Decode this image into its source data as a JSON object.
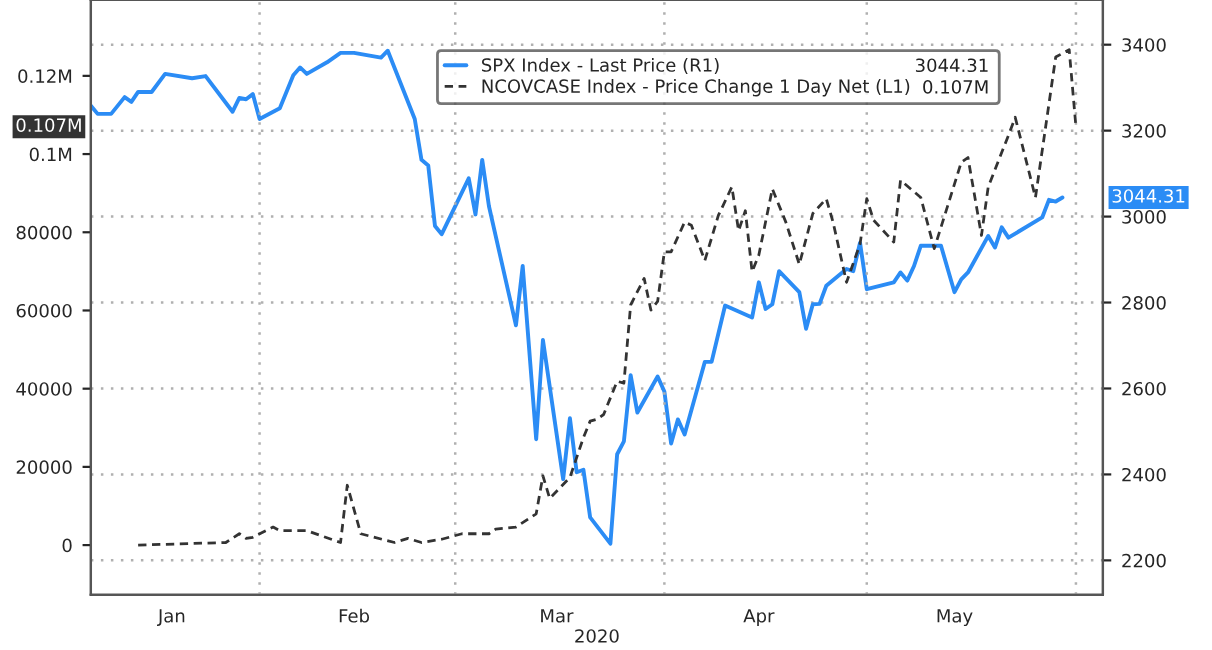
{
  "chart_data": {
    "type": "line",
    "xlabel": "2020",
    "xlim": [
      "2020-01-07",
      "2020-06-05"
    ],
    "xticks": [
      {
        "value": "2020-01-19",
        "label": "Jan"
      },
      {
        "value": "2020-02-01",
        "label": null
      },
      {
        "value": "2020-02-15",
        "label": "Feb"
      },
      {
        "value": "2020-03-01",
        "label": null
      },
      {
        "value": "2020-03-16",
        "label": "Mar"
      },
      {
        "value": "2020-04-01",
        "label": null
      },
      {
        "value": "2020-04-15",
        "label": "Apr"
      },
      {
        "value": "2020-05-01",
        "label": null
      },
      {
        "value": "2020-05-14",
        "label": "May"
      },
      {
        "value": "2020-06-01",
        "label": null
      }
    ],
    "ylim": [
      -12700,
      139400
    ],
    "yticks": [
      0,
      20000,
      40000,
      60000,
      80000,
      {
        "value": 100000,
        "label": "0.1M"
      },
      {
        "value": 120000,
        "label": "0.12M"
      }
    ],
    "y2lim": [
      2120,
      3504
    ],
    "y2ticks": [
      2200,
      2400,
      2600,
      2800,
      3000,
      3200,
      3400
    ],
    "grid": true,
    "legend": "top",
    "marker": "none",
    "series": [
      {
        "name": "SPX Index - Last Price (R1)",
        "color": "#2b8cf5",
        "axis": "y2",
        "line_style": "solid",
        "x": [
          "2020-01-07",
          "2020-01-08",
          "2020-01-10",
          "2020-01-12",
          "2020-01-13",
          "2020-01-14",
          "2020-01-16",
          "2020-01-18",
          "2020-01-22",
          "2020-01-24",
          "2020-01-28",
          "2020-01-29",
          "2020-01-30",
          "2020-01-31",
          "2020-02-01",
          "2020-02-04",
          "2020-02-06",
          "2020-02-07",
          "2020-02-08",
          "2020-02-11",
          "2020-02-13",
          "2020-02-15",
          "2020-02-19",
          "2020-02-20",
          "2020-02-24",
          "2020-02-25",
          "2020-02-26",
          "2020-02-27",
          "2020-02-28",
          "2020-03-03",
          "2020-03-04",
          "2020-03-05",
          "2020-03-06",
          "2020-03-10",
          "2020-03-11",
          "2020-03-13",
          "2020-03-14",
          "2020-03-17",
          "2020-03-18",
          "2020-03-19",
          "2020-03-20",
          "2020-03-21",
          "2020-03-24",
          "2020-03-25",
          "2020-03-26",
          "2020-03-27",
          "2020-03-28",
          "2020-03-31",
          "2020-04-01",
          "2020-04-02",
          "2020-04-03",
          "2020-04-04",
          "2020-04-07",
          "2020-04-08",
          "2020-04-10",
          "2020-04-14",
          "2020-04-15",
          "2020-04-16",
          "2020-04-17",
          "2020-04-18",
          "2020-04-21",
          "2020-04-22",
          "2020-04-23",
          "2020-04-24",
          "2020-04-25",
          "2020-04-28",
          "2020-04-29",
          "2020-04-30",
          "2020-05-01",
          "2020-05-05",
          "2020-05-06",
          "2020-05-07",
          "2020-05-08",
          "2020-05-09",
          "2020-05-12",
          "2020-05-14",
          "2020-05-15",
          "2020-05-16",
          "2020-05-19",
          "2020-05-20",
          "2020-05-21",
          "2020-05-22",
          "2020-05-27",
          "2020-05-28",
          "2020-05-29",
          "2020-05-30"
        ],
        "values": [
          3258,
          3239,
          3239,
          3278,
          3267,
          3290,
          3290,
          3332,
          3322,
          3327,
          3244,
          3276,
          3273,
          3285,
          3227,
          3252,
          3329,
          3347,
          3332,
          3359,
          3381,
          3381,
          3370,
          3386,
          3227,
          3132,
          3119,
          2978,
          2959,
          3089,
          3005,
          3132,
          3024,
          2747,
          2885,
          2482,
          2713,
          2389,
          2531,
          2405,
          2411,
          2300,
          2239,
          2447,
          2477,
          2631,
          2544,
          2628,
          2593,
          2472,
          2528,
          2493,
          2662,
          2662,
          2793,
          2765,
          2847,
          2785,
          2796,
          2873,
          2824,
          2739,
          2796,
          2797,
          2839,
          2878,
          2873,
          2939,
          2831,
          2847,
          2870,
          2851,
          2885,
          2932,
          2932,
          2824,
          2854,
          2870,
          2955,
          2928,
          2975,
          2951,
          2998,
          3039,
          3035,
          3044.31
        ]
      },
      {
        "name": "NCOVCASE Index - Price Change 1 Day Net (L1)",
        "color": "#333333",
        "axis": "y",
        "line_style": "dashed",
        "x": [
          "2020-01-14",
          "2020-01-27",
          "2020-01-29",
          "2020-01-30",
          "2020-01-31",
          "2020-02-03",
          "2020-02-04",
          "2020-02-08",
          "2020-02-13",
          "2020-02-14",
          "2020-02-16",
          "2020-02-21",
          "2020-02-23",
          "2020-02-25",
          "2020-02-28",
          "2020-03-02",
          "2020-03-06",
          "2020-03-07",
          "2020-03-10",
          "2020-03-13",
          "2020-03-14",
          "2020-03-15",
          "2020-03-18",
          "2020-03-20",
          "2020-03-21",
          "2020-03-22",
          "2020-03-23",
          "2020-03-25",
          "2020-03-26",
          "2020-03-27",
          "2020-03-29",
          "2020-03-30",
          "2020-03-31",
          "2020-04-01",
          "2020-04-02",
          "2020-04-04",
          "2020-04-05",
          "2020-04-07",
          "2020-04-09",
          "2020-04-11",
          "2020-04-12",
          "2020-04-13",
          "2020-04-14",
          "2020-04-15",
          "2020-04-17",
          "2020-04-19",
          "2020-04-21",
          "2020-04-23",
          "2020-04-25",
          "2020-04-26",
          "2020-04-28",
          "2020-04-30",
          "2020-05-01",
          "2020-05-02",
          "2020-05-05",
          "2020-05-06",
          "2020-05-09",
          "2020-05-11",
          "2020-05-13",
          "2020-05-15",
          "2020-05-16",
          "2020-05-18",
          "2020-05-19",
          "2020-05-22",
          "2020-05-23",
          "2020-05-26",
          "2020-05-29",
          "2020-05-31",
          "2020-06-01"
        ],
        "values": [
          0,
          660,
          2900,
          1700,
          2000,
          4600,
          3700,
          3700,
          660,
          15300,
          2900,
          660,
          1700,
          660,
          1500,
          2900,
          2900,
          4100,
          4600,
          8000,
          17700,
          11900,
          17300,
          27500,
          31700,
          32200,
          33400,
          41900,
          41400,
          61400,
          68200,
          60100,
          62300,
          75000,
          75000,
          82600,
          81800,
          72800,
          84300,
          91600,
          80400,
          85500,
          69900,
          74200,
          91100,
          82600,
          71800,
          84800,
          88600,
          82600,
          67200,
          77000,
          88600,
          83100,
          77500,
          93300,
          88900,
          75800,
          86800,
          97900,
          99100,
          79200,
          91600,
          104800,
          109400,
          88900,
          124800,
          126700,
          107000
        ]
      }
    ],
    "annotations": [
      "3044.31",
      "0.107M"
    ]
  }
}
